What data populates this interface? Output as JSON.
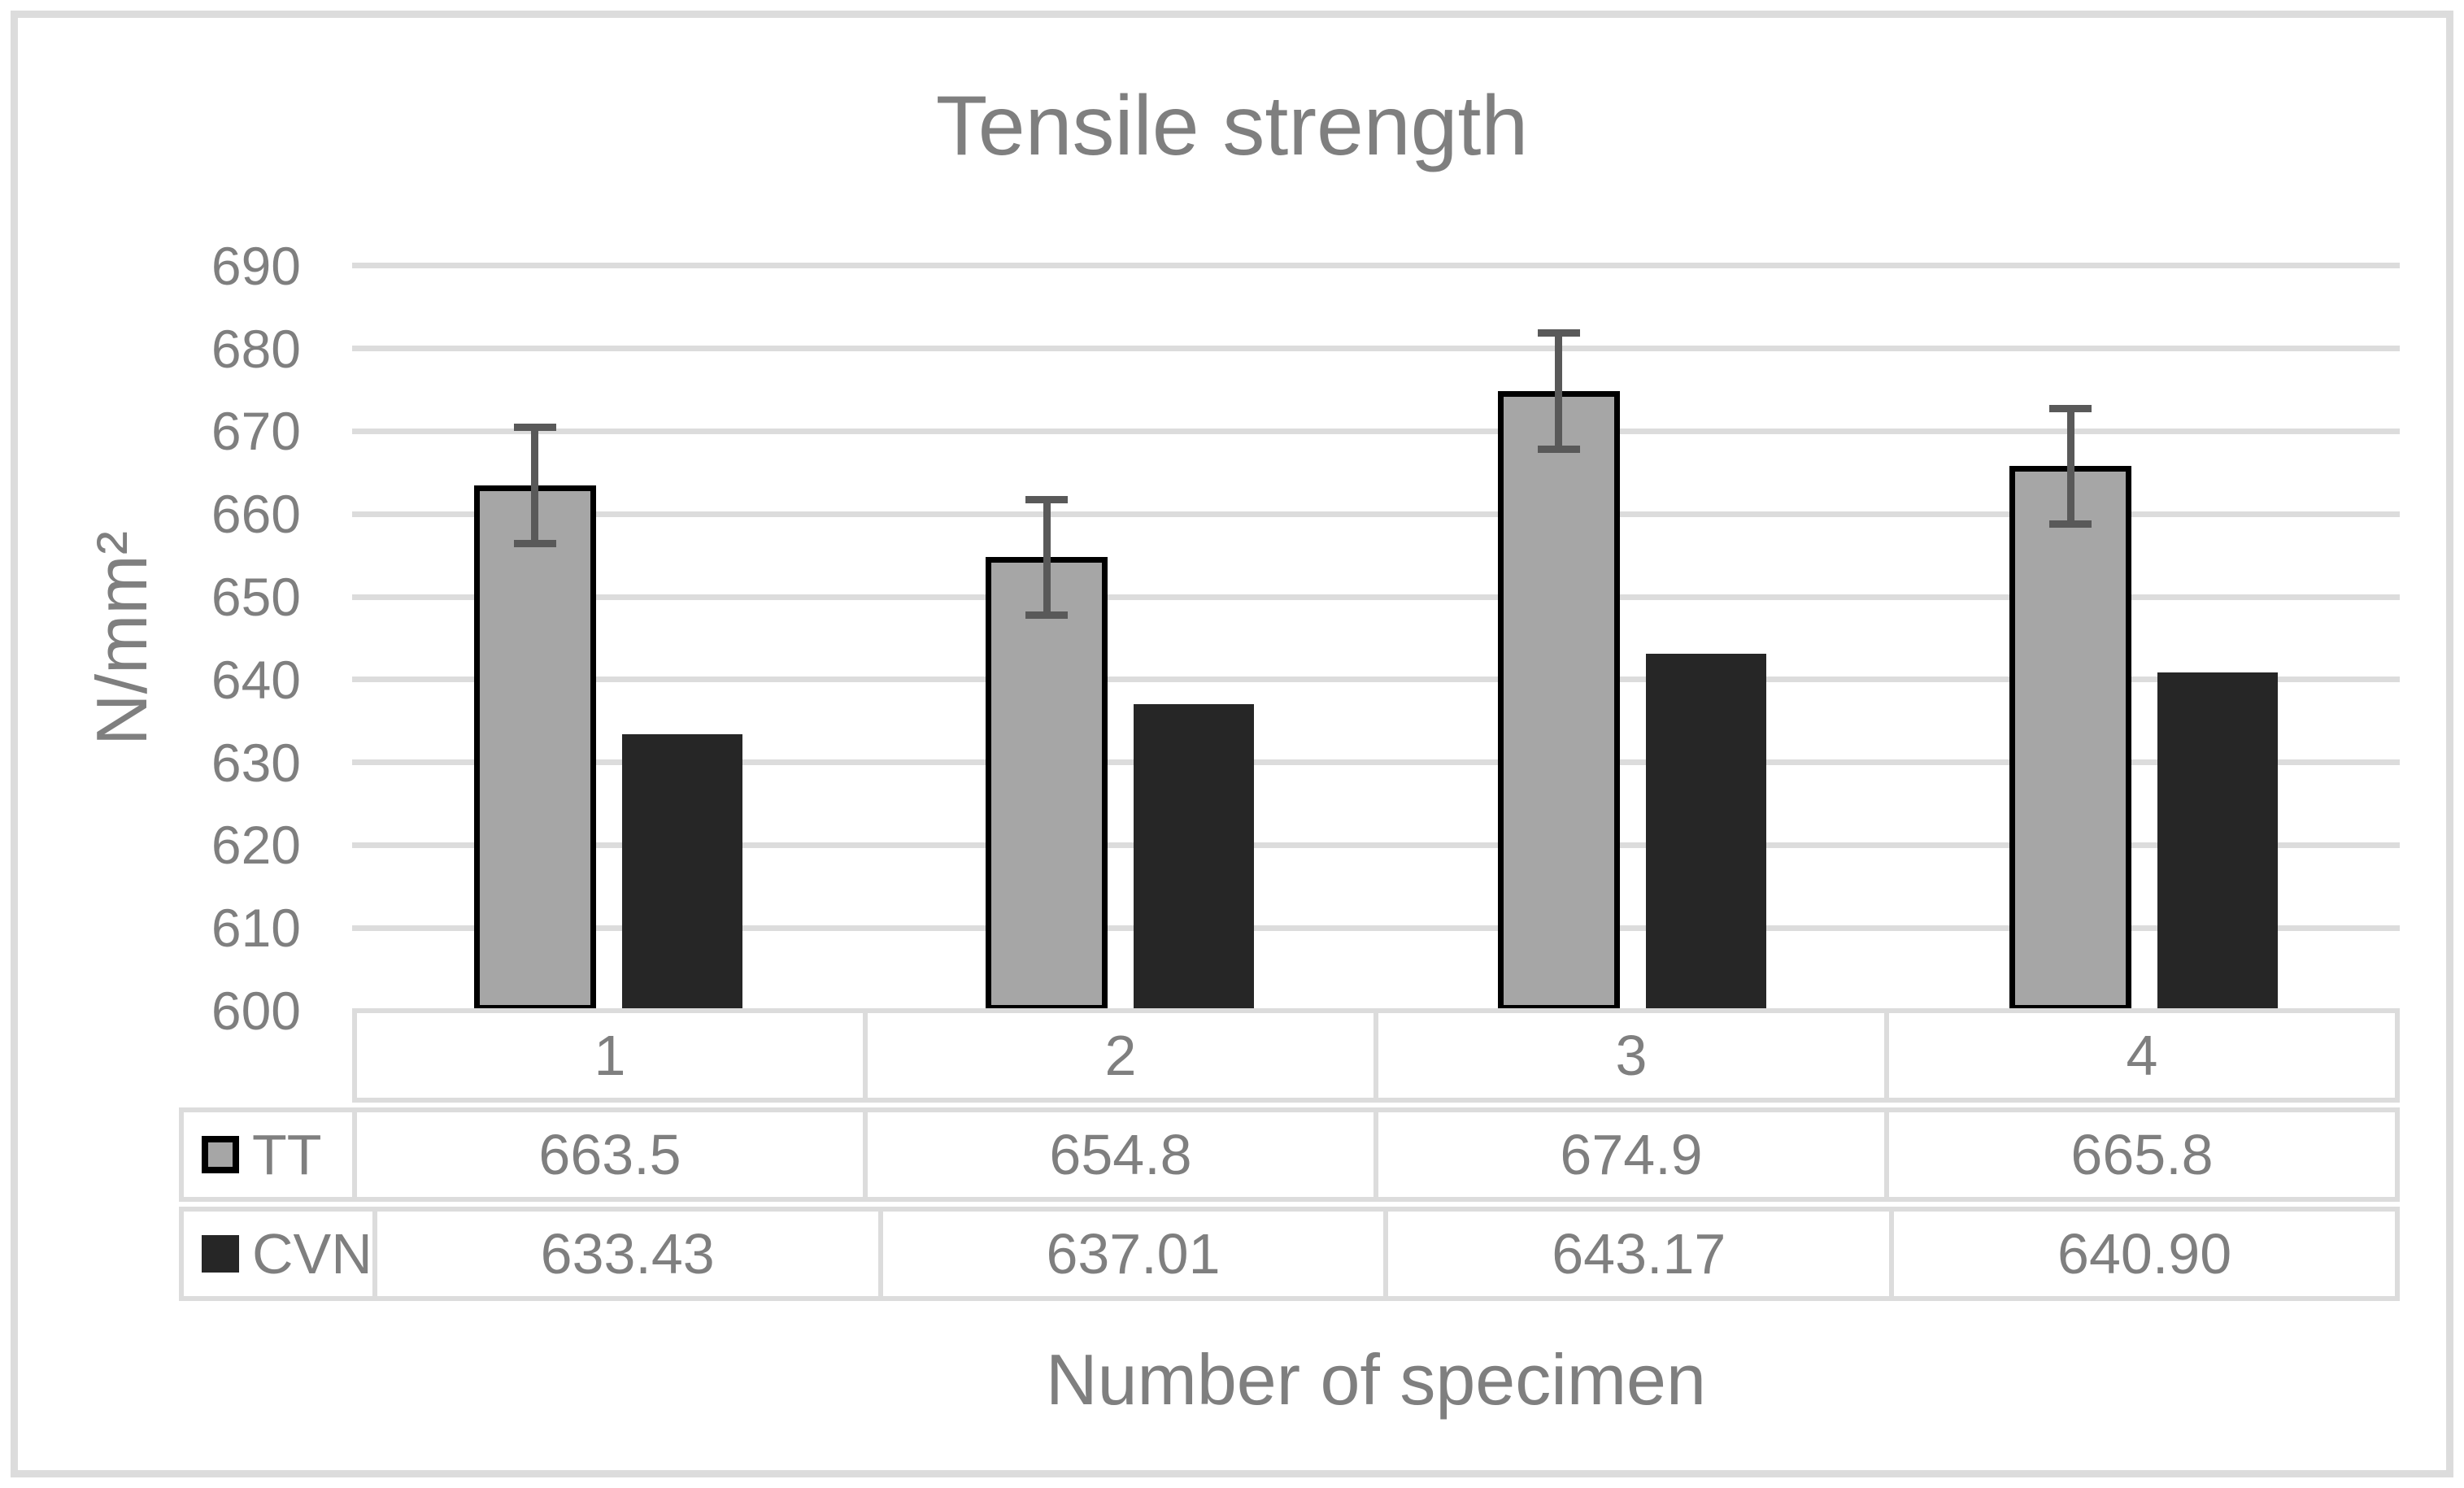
{
  "chart_data": {
    "type": "bar",
    "title": "Tensile strength",
    "xlabel": "Number of specimen",
    "ylabel": "N/mm²",
    "categories": [
      "1",
      "2",
      "3",
      "4"
    ],
    "series": [
      {
        "name": "TT",
        "values": [
          663.5,
          654.8,
          674.9,
          665.8
        ],
        "display": [
          "663.5",
          "654.8",
          "674.9",
          "665.8"
        ],
        "fill": "#a6a6a6",
        "border": "#000000",
        "error_bars": {
          "plus": 7,
          "minus": 7,
          "color": "#595959"
        }
      },
      {
        "name": "CVN",
        "values": [
          633.43,
          637.01,
          643.17,
          640.9
        ],
        "display": [
          "633.43",
          "637.01",
          "643.17",
          "640.90"
        ],
        "fill": "#262626",
        "border": null,
        "error_bars": null
      }
    ],
    "ylim": [
      600,
      690
    ],
    "yticks": [
      690,
      680,
      670,
      660,
      650,
      640,
      630,
      620,
      610,
      600
    ],
    "grid": true,
    "legend_position": "table-left",
    "colors": {
      "text": "#7f7f7f",
      "gridline": "#dcdcdc",
      "frame": "#dcdcdc",
      "error_bar": "#595959"
    }
  }
}
